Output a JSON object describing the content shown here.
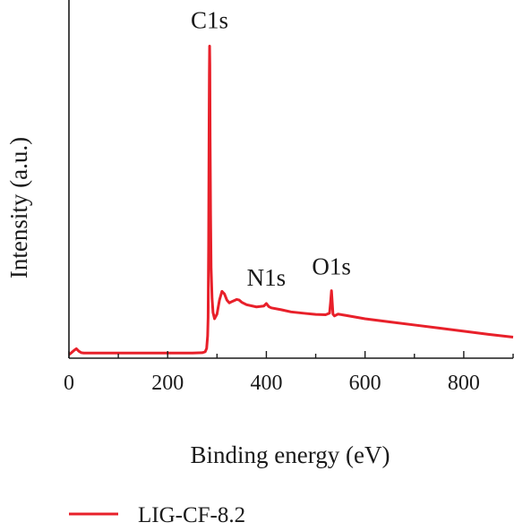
{
  "chart_data": {
    "type": "line",
    "title": "",
    "xlabel": "Binding energy (eV)",
    "ylabel": "Intensity (a.u.)",
    "xlim": [
      0,
      900
    ],
    "ylim": [
      0,
      100
    ],
    "yticks_shown": false,
    "grid": false,
    "legend_position": "bottom-left",
    "x_ticks": [
      "0",
      "200",
      "400",
      "600",
      "800"
    ],
    "x_tick_values": [
      0,
      200,
      400,
      600,
      800
    ],
    "series": [
      {
        "name": "LIG-CF-8.2",
        "color": "#e8202a",
        "x": [
          0,
          5,
          10,
          15,
          20,
          25,
          30,
          40,
          60,
          100,
          150,
          200,
          250,
          270,
          276,
          279,
          281,
          282,
          283,
          284,
          284.5,
          285,
          285.5,
          286,
          287,
          288,
          290,
          292,
          295,
          300,
          305,
          310,
          315,
          320,
          325,
          330,
          340,
          345,
          350,
          360,
          380,
          395,
          400,
          405,
          410,
          430,
          450,
          480,
          500,
          520,
          528,
          530,
          532,
          533,
          535,
          538,
          545,
          560,
          600,
          650,
          700,
          750,
          800,
          850,
          900
        ],
        "y": [
          0,
          0.6,
          1.3,
          1.9,
          1.1,
          0.6,
          0.5,
          0.5,
          0.5,
          0.5,
          0.5,
          0.5,
          0.5,
          0.6,
          0.9,
          2.0,
          6.0,
          12.0,
          35.0,
          75.0,
          90.0,
          99.0,
          93.0,
          70.0,
          45.0,
          28.0,
          18.0,
          13.5,
          11.5,
          13.0,
          17.5,
          20.3,
          19.5,
          17.5,
          16.6,
          17.0,
          17.7,
          17.5,
          16.8,
          16.0,
          15.3,
          15.6,
          16.4,
          15.4,
          15.0,
          14.4,
          13.7,
          13.2,
          12.9,
          12.8,
          13.3,
          16.5,
          20.5,
          18.0,
          13.0,
          12.4,
          13.0,
          12.6,
          11.5,
          10.5,
          9.5,
          8.5,
          7.5,
          6.5,
          5.6
        ]
      }
    ],
    "annotations": [
      {
        "text": "C1s",
        "x": 285,
        "y": 99
      },
      {
        "text": "N1s",
        "x": 400,
        "y": 16.4
      },
      {
        "text": "O1s",
        "x": 532,
        "y": 20.5
      }
    ]
  }
}
